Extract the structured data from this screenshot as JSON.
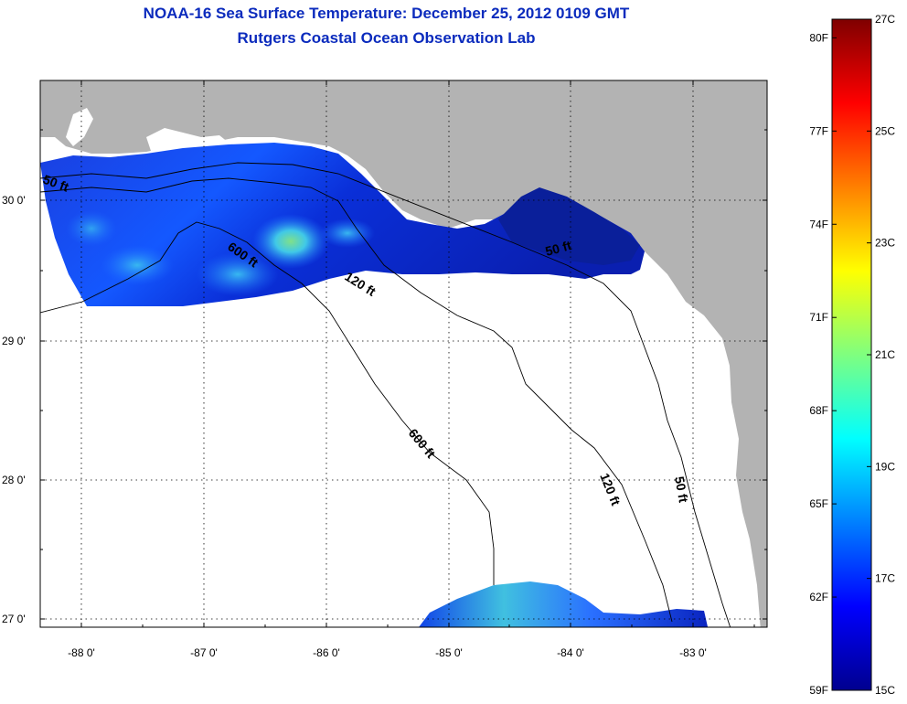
{
  "title": {
    "line1": "NOAA-16 Sea Surface Temperature:  December 25, 2012 0109 GMT",
    "line2": "Rutgers Coastal Ocean Observation Lab"
  },
  "map": {
    "lat_labels": [
      "30 0'",
      "29 0'",
      "28 0'",
      "27 0'"
    ],
    "lon_labels": [
      "-88 0'",
      "-87 0'",
      "-86 0'",
      "-85 0'",
      "-84 0'",
      "-83 0'"
    ],
    "contour_labels": [
      "50 ft",
      "600 ft",
      "120 ft",
      "50 ft",
      "600 ft",
      "120 ft",
      "50 ft"
    ],
    "colors": {
      "land": "#b3b3b3",
      "ocean_nodata": "#ffffff"
    }
  },
  "colorbar": {
    "fahrenheit_labels": [
      "80F",
      "77F",
      "74F",
      "71F",
      "68F",
      "65F",
      "62F",
      "59F"
    ],
    "celsius_labels": [
      "27C",
      "25C",
      "23C",
      "21C",
      "19C",
      "17C",
      "15C"
    ],
    "range_celsius": [
      15,
      27
    ],
    "colormap": "jet"
  }
}
